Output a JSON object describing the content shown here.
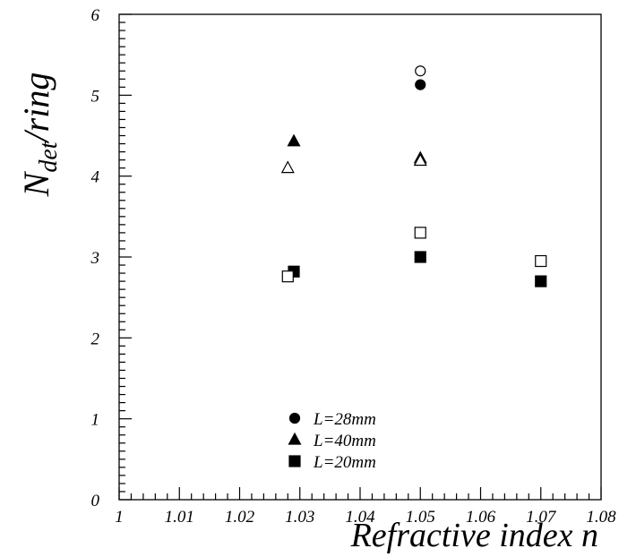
{
  "chart_data": {
    "type": "scatter",
    "xlabel": "Refractive index n",
    "ylabel_main": "N",
    "ylabel_sub": "det",
    "ylabel_rest": "/ring",
    "xlim": [
      1.0,
      1.08
    ],
    "ylim": [
      0,
      6
    ],
    "x_ticks": [
      {
        "value": 1.0,
        "label": "1"
      },
      {
        "value": 1.01,
        "label": "1.01"
      },
      {
        "value": 1.02,
        "label": "1.02"
      },
      {
        "value": 1.03,
        "label": "1.03"
      },
      {
        "value": 1.04,
        "label": "1.04"
      },
      {
        "value": 1.05,
        "label": "1.05"
      },
      {
        "value": 1.06,
        "label": "1.06"
      },
      {
        "value": 1.07,
        "label": "1.07"
      },
      {
        "value": 1.08,
        "label": "1.08"
      }
    ],
    "y_ticks": [
      {
        "value": 0,
        "label": "0"
      },
      {
        "value": 1,
        "label": "1"
      },
      {
        "value": 2,
        "label": "2"
      },
      {
        "value": 3,
        "label": "3"
      },
      {
        "value": 4,
        "label": "4"
      },
      {
        "value": 5,
        "label": "5"
      },
      {
        "value": 6,
        "label": "6"
      }
    ],
    "legend_placement": "bottom-center",
    "series": [
      {
        "name": "L=28mm",
        "marker": "circle",
        "points": [
          {
            "x": 1.05,
            "y": 5.13,
            "filled": true
          },
          {
            "x": 1.05,
            "y": 5.3,
            "filled": false
          }
        ]
      },
      {
        "name": "L=40mm",
        "marker": "triangle",
        "points": [
          {
            "x": 1.029,
            "y": 4.43,
            "filled": true
          },
          {
            "x": 1.028,
            "y": 4.1,
            "filled": false
          },
          {
            "x": 1.05,
            "y": 4.22,
            "filled": true
          },
          {
            "x": 1.05,
            "y": 4.19,
            "filled": false
          }
        ]
      },
      {
        "name": "L=20mm",
        "marker": "square",
        "points": [
          {
            "x": 1.029,
            "y": 2.82,
            "filled": true
          },
          {
            "x": 1.028,
            "y": 2.76,
            "filled": false
          },
          {
            "x": 1.05,
            "y": 3.0,
            "filled": true
          },
          {
            "x": 1.05,
            "y": 3.3,
            "filled": false
          },
          {
            "x": 1.07,
            "y": 2.7,
            "filled": true
          },
          {
            "x": 1.07,
            "y": 2.95,
            "filled": false
          }
        ]
      }
    ]
  }
}
